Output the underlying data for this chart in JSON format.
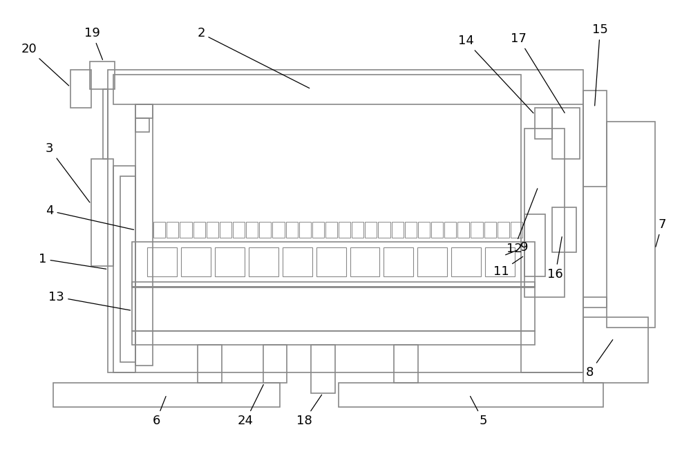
{
  "bg_color": "#ffffff",
  "lc": "#888888",
  "lw": 1.2,
  "figsize": [
    10.0,
    6.57
  ],
  "dpi": 100
}
